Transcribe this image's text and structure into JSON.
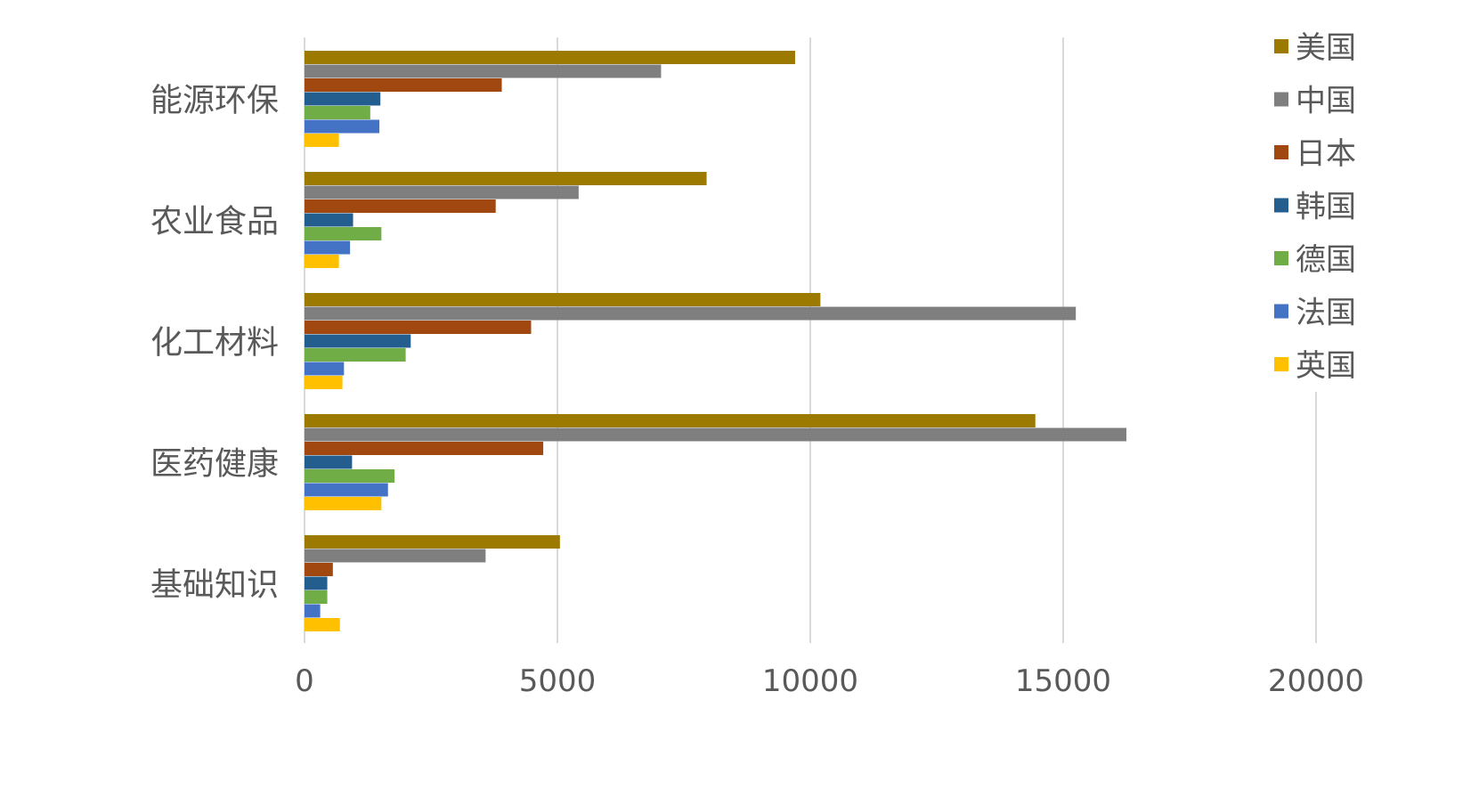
{
  "chart_data": {
    "type": "bar",
    "orientation": "horizontal",
    "title": "",
    "xlabel": "",
    "ylabel": "",
    "xlim": [
      0,
      20000
    ],
    "x_ticks": [
      "0",
      "5000",
      "10000",
      "15000",
      "20000"
    ],
    "grid": "vertical",
    "legend_position": "right",
    "categories": [
      "能源环保",
      "农业食品",
      "化工材料",
      "医药健康",
      "基础知识"
    ],
    "series": [
      {
        "name": "美国",
        "color": "#9C7A00",
        "values": [
          9700,
          7950,
          10200,
          14450,
          5050
        ]
      },
      {
        "name": "中国",
        "color": "#7F7F7F",
        "values": [
          7050,
          5420,
          15250,
          16250,
          3580
        ]
      },
      {
        "name": "日本",
        "color": "#A0480F",
        "values": [
          3900,
          3780,
          4480,
          4720,
          560
        ]
      },
      {
        "name": "韩国",
        "color": "#245E8E",
        "values": [
          1500,
          960,
          2100,
          940,
          450
        ]
      },
      {
        "name": "德国",
        "color": "#70AD47",
        "values": [
          1300,
          1520,
          2000,
          1780,
          450
        ]
      },
      {
        "name": "法国",
        "color": "#4472C4",
        "values": [
          1480,
          900,
          780,
          1650,
          310
        ]
      },
      {
        "name": "英国",
        "color": "#FFC000",
        "values": [
          680,
          680,
          750,
          1520,
          700
        ]
      }
    ]
  }
}
